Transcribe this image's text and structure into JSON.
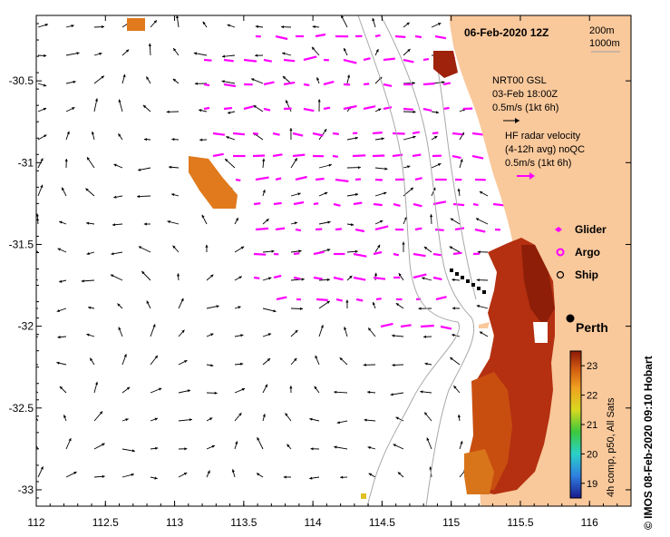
{
  "map": {
    "title": "06-Feb-2020 12Z",
    "scale": {
      "contour1": "200m",
      "contour2": "1000m"
    },
    "lon_ticks": [
      "112",
      "112.5",
      "113",
      "113.5",
      "114",
      "114.5",
      "115",
      "115.5",
      "116"
    ],
    "lat_ticks": [
      "-30.5",
      "-31",
      "-31.5",
      "-32",
      "-32.5",
      "-33"
    ],
    "legend": {
      "nrt": [
        "NRT00 GSL",
        "03-Feb 18:00Z",
        "0.5m/s (1kt 6h)"
      ],
      "hf": [
        "HF radar velocity",
        "(4-12h avg) noQC",
        "0.5m/s (1kt 6h)"
      ],
      "symbols": [
        "Glider",
        "Argo",
        "Ship"
      ]
    },
    "place_label": "Perth",
    "colorbar": {
      "title": "4h comp, p50, All Sats",
      "ticks": [
        "23",
        "22",
        "21",
        "20",
        "19"
      ],
      "range": [
        18.5,
        23.5
      ]
    },
    "credit": "© IMOS 08-Feb-2020 09:10 Hobart",
    "colors": {
      "land": "#f9c89b",
      "radar_arrow": "#ff00ff",
      "current_arrow": "#000000",
      "isobath": "#a0a0a0"
    },
    "extent": {
      "lon": [
        112,
        116.3
      ],
      "lat": [
        -33.1,
        -30.1
      ]
    }
  }
}
